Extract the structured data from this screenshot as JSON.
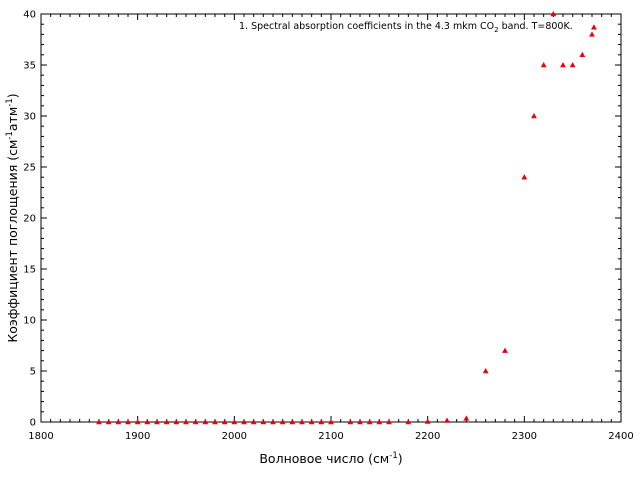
{
  "chart_data": {
    "type": "scatter",
    "legend": {
      "position": "top-right",
      "prefix": "1. Spectral absorption coefficients in the 4.3 mkm CO",
      "subscript": "2",
      "suffix": " band. T=800K."
    },
    "xlabel": {
      "main": "Волновое число (см",
      "sup": "-1",
      "end": ")"
    },
    "ylabel": {
      "part1": "Коэффициент поглощения (см",
      "sup1": "-1",
      "part2": "атм",
      "sup2": "-1",
      "end": ")"
    },
    "xlim": [
      1800,
      2400
    ],
    "ylim": [
      0,
      40
    ],
    "xticks": [
      1800,
      1900,
      2000,
      2100,
      2200,
      2300,
      2400
    ],
    "yticks": [
      0,
      5,
      10,
      15,
      20,
      25,
      30,
      35,
      40
    ],
    "grid": false,
    "marker": "triangle",
    "series": [
      {
        "color": "#e8000b",
        "x": [
          1860,
          1870,
          1880,
          1890,
          1900,
          1910,
          1920,
          1930,
          1940,
          1950,
          1960,
          1970,
          1980,
          1990,
          2000,
          2010,
          2020,
          2030,
          2040,
          2050,
          2060,
          2070,
          2080,
          2090,
          2100,
          2120,
          2130,
          2140,
          2150,
          2160,
          2180,
          2200,
          2220,
          2240,
          2260,
          2280,
          2300,
          2310,
          2320,
          2330,
          2340,
          2350,
          2360,
          2370,
          2372
        ],
        "y": [
          0,
          0,
          0,
          0,
          0,
          0,
          0,
          0,
          0,
          0,
          0,
          0,
          0,
          0,
          0,
          0,
          0,
          0,
          0,
          0,
          0,
          0,
          0,
          0,
          0,
          0,
          0,
          0,
          0,
          0,
          0,
          0.05,
          0.15,
          0.35,
          5,
          7,
          24,
          30,
          35,
          40,
          35,
          35,
          36,
          38,
          38.7
        ]
      }
    ]
  }
}
